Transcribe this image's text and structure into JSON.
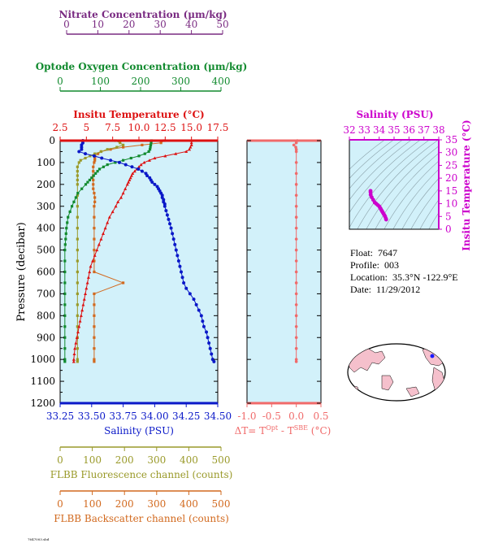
{
  "colors": {
    "nitrate": "#7a2b82",
    "oxygen": "#118a2e",
    "temperature": "#dd1111",
    "salinity": "#0a18c8",
    "fluorescence": "#9a9a2a",
    "backscatter": "#d2691e",
    "delta": "#f06a6a",
    "ts": "#cc00cc",
    "panel_bg": "#d2f1fa"
  },
  "axes": {
    "nitrate": {
      "title": "Nitrate Concentration (μm/kg)",
      "ticks": [
        "0",
        "10",
        "20",
        "30",
        "40",
        "50"
      ]
    },
    "oxygen": {
      "title": "Optode Oxygen Concentration (μm/kg)",
      "ticks": [
        "0",
        "100",
        "200",
        "300",
        "400"
      ]
    },
    "temperature": {
      "title": "Insitu Temperature (°C)",
      "ticks": [
        "2.5",
        "5",
        "7.5",
        "10.0",
        "12.5",
        "15.0",
        "17.5"
      ]
    },
    "pressure": {
      "title": "Pressure (decibar)",
      "ticks": [
        "0",
        "100",
        "200",
        "300",
        "400",
        "500",
        "600",
        "700",
        "800",
        "900",
        "1000",
        "1100",
        "1200"
      ]
    },
    "salinity": {
      "title": "Salinity (PSU)",
      "ticks": [
        "33.25",
        "33.50",
        "33.75",
        "34.00",
        "34.25",
        "34.50"
      ]
    },
    "fluorescence": {
      "title": "FLBB Fluorescence channel (counts)",
      "ticks": [
        "0",
        "100",
        "200",
        "300",
        "400",
        "500"
      ]
    },
    "backscatter": {
      "title": "FLBB Backscatter channel (counts)",
      "ticks": [
        "0",
        "100",
        "200",
        "300",
        "400",
        "500"
      ]
    },
    "delta": {
      "title_main": "ΔT= T",
      "sup1": "Opt",
      "title_mid": " - T",
      "sup2": "SBE",
      "title_end": " (°C)",
      "ticks": [
        "-1.0",
        "-0.5",
        "0.0",
        "0.5"
      ]
    },
    "ts_salinity": {
      "title": "Salinity (PSU)",
      "ticks": [
        "32",
        "33",
        "34",
        "35",
        "36",
        "37",
        "38"
      ]
    },
    "ts_temperature": {
      "title": "Insitu Temperature (°C)",
      "ticks": [
        "0",
        "5",
        "10",
        "15",
        "20",
        "25",
        "30",
        "35"
      ]
    }
  },
  "info": {
    "float_label": "Float:",
    "float_value": "7647",
    "profile_label": "Profile:",
    "profile_value": "003",
    "location_label": "Location:",
    "location_value": "35.3°N  -122.9°E",
    "date_label": "Date:",
    "date_value": "11/29/2012"
  },
  "footer_text": "7647003.sbd",
  "chart_data": [
    {
      "type": "line",
      "name": "profile",
      "ylim": [
        0,
        1200
      ],
      "salinity_xlim": [
        33.25,
        34.5
      ],
      "temperature_xlim": [
        2.5,
        17.5
      ],
      "oxygen_xlim": [
        0,
        400
      ],
      "fluorescence_xlim": [
        0,
        500
      ],
      "backscatter_xlim": [
        0,
        500
      ],
      "salinity": {
        "p": [
          0,
          10,
          20,
          30,
          40,
          50,
          60,
          70,
          80,
          90,
          100,
          110,
          120,
          130,
          140,
          150,
          160,
          170,
          180,
          190,
          200,
          210,
          220,
          230,
          240,
          250,
          260,
          270,
          280,
          290,
          300,
          320,
          340,
          360,
          380,
          400,
          425,
          450,
          475,
          500,
          525,
          550,
          575,
          600,
          625,
          650,
          675,
          700,
          725,
          750,
          775,
          800,
          825,
          850,
          875,
          900,
          925,
          950,
          975,
          1000,
          1010
        ],
        "x": [
          33.43,
          33.43,
          33.42,
          33.42,
          33.42,
          33.4,
          33.45,
          33.52,
          33.58,
          33.65,
          33.72,
          33.77,
          33.82,
          33.87,
          33.9,
          33.93,
          33.94,
          33.96,
          33.97,
          33.98,
          34.0,
          34.02,
          34.03,
          34.04,
          34.05,
          34.06,
          34.06,
          34.07,
          34.07,
          34.08,
          34.08,
          34.09,
          34.1,
          34.11,
          34.12,
          34.13,
          34.14,
          34.15,
          34.16,
          34.17,
          34.18,
          34.19,
          34.2,
          34.21,
          34.22,
          34.23,
          34.25,
          34.28,
          34.31,
          34.33,
          34.35,
          34.37,
          34.38,
          34.39,
          34.41,
          34.42,
          34.43,
          34.44,
          34.45,
          34.46,
          34.47
        ]
      },
      "temperature": {
        "p": [
          0,
          10,
          20,
          30,
          40,
          50,
          60,
          70,
          80,
          90,
          100,
          110,
          120,
          130,
          140,
          150,
          160,
          170,
          180,
          190,
          200,
          220,
          240,
          260,
          280,
          300,
          325,
          350,
          375,
          400,
          425,
          450,
          475,
          500,
          525,
          550,
          575,
          600,
          625,
          650,
          675,
          700,
          725,
          750,
          775,
          800,
          825,
          850,
          875,
          900,
          925,
          950,
          975,
          1000,
          1010
        ],
        "x": [
          15.0,
          15.0,
          15.0,
          14.9,
          14.8,
          14.5,
          13.5,
          12.5,
          11.5,
          11.0,
          10.5,
          10.2,
          10.0,
          9.8,
          9.6,
          9.4,
          9.3,
          9.2,
          9.1,
          9.0,
          8.9,
          8.7,
          8.5,
          8.3,
          8.0,
          7.8,
          7.5,
          7.2,
          7.0,
          6.8,
          6.6,
          6.4,
          6.2,
          6.0,
          5.8,
          5.6,
          5.4,
          5.3,
          5.2,
          5.1,
          5.0,
          4.9,
          4.8,
          4.7,
          4.6,
          4.5,
          4.4,
          4.3,
          4.2,
          4.1,
          4.0,
          3.9,
          3.85,
          3.8,
          3.8
        ]
      },
      "oxygen": {
        "p": [
          0,
          10,
          20,
          30,
          40,
          50,
          60,
          70,
          80,
          90,
          100,
          110,
          120,
          130,
          140,
          150,
          160,
          170,
          180,
          190,
          200,
          220,
          240,
          260,
          280,
          300,
          325,
          350,
          375,
          400,
          425,
          450,
          475,
          500,
          550,
          600,
          650,
          700,
          750,
          800,
          850,
          900,
          950,
          1000,
          1010
        ],
        "x": [
          232,
          231,
          230,
          229,
          228,
          225,
          215,
          200,
          180,
          160,
          140,
          120,
          110,
          100,
          95,
          90,
          85,
          80,
          75,
          70,
          65,
          55,
          45,
          40,
          35,
          30,
          25,
          20,
          18,
          16,
          15,
          14,
          13,
          12,
          12,
          12,
          12,
          12,
          12,
          12,
          12,
          12,
          12,
          12,
          12
        ]
      },
      "fluorescence": {
        "p": [
          0,
          10,
          20,
          30,
          40,
          50,
          60,
          70,
          80,
          90,
          100,
          120,
          140,
          160,
          180,
          200,
          250,
          300,
          350,
          400,
          450,
          500,
          550,
          600,
          650,
          700,
          750,
          800,
          850,
          900,
          950,
          1000,
          1010
        ],
        "x": [
          175,
          190,
          200,
          180,
          150,
          130,
          110,
          95,
          80,
          65,
          60,
          55,
          55,
          55,
          55,
          55,
          55,
          55,
          55,
          55,
          55,
          55,
          55,
          55,
          55,
          55,
          55,
          55,
          55,
          55,
          55,
          55,
          55
        ]
      },
      "backscatter": {
        "p": [
          0,
          10,
          20,
          30,
          40,
          50,
          60,
          70,
          80,
          90,
          100,
          120,
          140,
          160,
          180,
          200,
          220,
          240,
          260,
          280,
          300,
          350,
          400,
          450,
          500,
          550,
          600,
          650,
          700,
          750,
          800,
          850,
          900,
          950,
          1000,
          1010
        ],
        "x": [
          330,
          320,
          260,
          200,
          160,
          130,
          120,
          110,
          110,
          110,
          108,
          105,
          105,
          105,
          105,
          105,
          105,
          108,
          110,
          110,
          108,
          108,
          108,
          108,
          108,
          108,
          108,
          200,
          108,
          108,
          108,
          108,
          108,
          108,
          108,
          108
        ]
      },
      "delta_t": {
        "xlim": [
          -1.0,
          0.5
        ],
        "p": [
          0,
          10,
          20,
          30,
          40,
          50,
          100,
          150,
          200,
          250,
          300,
          350,
          400,
          450,
          500,
          550,
          600,
          650,
          700,
          750,
          800,
          850,
          900,
          950,
          1000,
          1010
        ],
        "x": [
          0.02,
          0.0,
          -0.05,
          -0.01,
          0.0,
          0.0,
          0.0,
          0.0,
          0.0,
          0.0,
          0.0,
          0.0,
          0.0,
          0.0,
          0.0,
          0.0,
          0.0,
          0.0,
          0.0,
          0.0,
          0.0,
          0.0,
          0.0,
          0.0,
          0.0,
          0.0
        ]
      }
    },
    {
      "type": "scatter",
      "name": "ts-diagram",
      "xlim": [
        32,
        38
      ],
      "ylim": [
        0,
        35
      ],
      "salinity": [
        33.42,
        33.42,
        33.43,
        33.5,
        33.6,
        33.7,
        33.8,
        33.9,
        34.0,
        34.05,
        34.1,
        34.15,
        34.2,
        34.25,
        34.3,
        34.35,
        34.4,
        34.45,
        34.47
      ],
      "temperature": [
        15.0,
        14.5,
        13.5,
        12.5,
        11.5,
        10.5,
        10.0,
        9.5,
        9.0,
        8.5,
        8.0,
        7.5,
        7.0,
        6.5,
        6.0,
        5.5,
        5.0,
        4.2,
        3.8
      ]
    }
  ]
}
